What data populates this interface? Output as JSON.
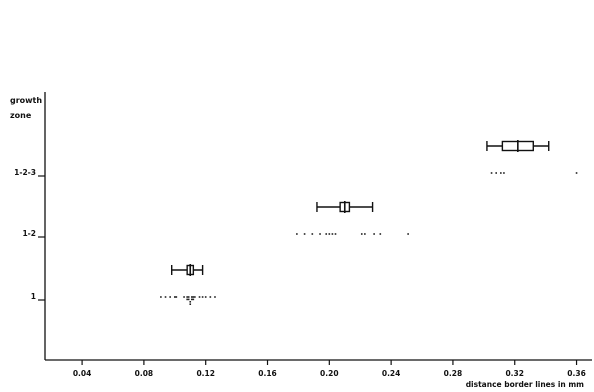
{
  "chart_data": {
    "type": "scatter",
    "title": "",
    "ylabel": [
      "growth",
      "zone"
    ],
    "xlabel": "distance border lines in mm",
    "xlim": [
      0.016,
      0.37
    ],
    "xticks": [
      {
        "value": 0.04,
        "label": "0.04"
      },
      {
        "value": 0.08,
        "label": "0.08"
      },
      {
        "value": 0.12,
        "label": "0.12"
      },
      {
        "value": 0.16,
        "label": "0.16"
      },
      {
        "value": 0.2,
        "label": "0.20"
      },
      {
        "value": 0.24,
        "label": "0.24"
      },
      {
        "value": 0.28,
        "label": "0.28"
      },
      {
        "value": 0.32,
        "label": "0.32"
      },
      {
        "value": 0.36,
        "label": "0.36"
      }
    ],
    "categories": [
      "1",
      "1-2",
      "1-2-3"
    ],
    "grid": false,
    "series": [
      {
        "category": "1",
        "observations": [
          0.091,
          0.094,
          0.097,
          0.1,
          0.101,
          0.106,
          0.108,
          0.108,
          0.109,
          0.109,
          0.11,
          0.11,
          0.111,
          0.111,
          0.112,
          0.112,
          0.113,
          0.116,
          0.118,
          0.12,
          0.123,
          0.126
        ],
        "mean": 0.11,
        "box": [
          0.108,
          0.112
        ],
        "whiskers": [
          0.098,
          0.118
        ]
      },
      {
        "category": "1-2",
        "observations": [
          0.179,
          0.184,
          0.189,
          0.194,
          0.198,
          0.2,
          0.202,
          0.204,
          0.221,
          0.223,
          0.229,
          0.233,
          0.251
        ],
        "mean": 0.21,
        "box": [
          0.207,
          0.213
        ],
        "whiskers": [
          0.192,
          0.228
        ]
      },
      {
        "category": "1-2-3",
        "observations": [
          0.305,
          0.308,
          0.311,
          0.313,
          0.36
        ],
        "mean": 0.322,
        "box": [
          0.312,
          0.332
        ],
        "whiskers": [
          0.302,
          0.342
        ]
      }
    ]
  }
}
